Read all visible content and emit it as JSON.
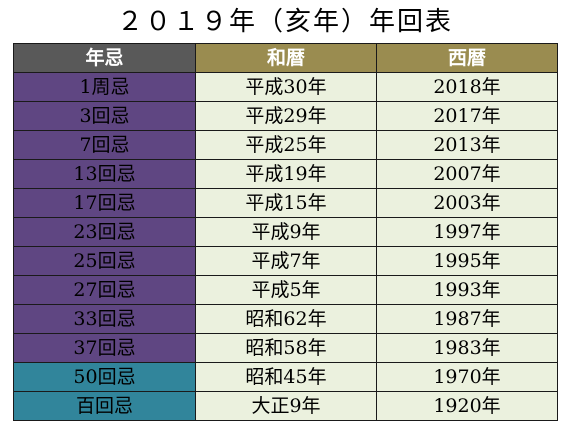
{
  "title": "２０１９年（亥年）年回表",
  "colors": {
    "header_nenki_bg": "#595959",
    "header_era_bg": "#9a8c50",
    "kaiki_purple": "#5f4682",
    "kaiki_teal": "#31859b",
    "value_bg": "#ebf1de",
    "border": "#1a1a1a"
  },
  "headers": {
    "nenki": "年忌",
    "wareki": "和暦",
    "seireki": "西暦"
  },
  "rows": [
    {
      "nenki": "1周忌",
      "wareki": "平成30年",
      "seireki": "2018年",
      "color": "#5f4682"
    },
    {
      "nenki": "3回忌",
      "wareki": "平成29年",
      "seireki": "2017年",
      "color": "#5f4682"
    },
    {
      "nenki": "7回忌",
      "wareki": "平成25年",
      "seireki": "2013年",
      "color": "#5f4682"
    },
    {
      "nenki": "13回忌",
      "wareki": "平成19年",
      "seireki": "2007年",
      "color": "#5f4682"
    },
    {
      "nenki": "17回忌",
      "wareki": "平成15年",
      "seireki": "2003年",
      "color": "#5f4682"
    },
    {
      "nenki": "23回忌",
      "wareki": "平成9年",
      "seireki": "1997年",
      "color": "#5f4682"
    },
    {
      "nenki": "25回忌",
      "wareki": "平成7年",
      "seireki": "1995年",
      "color": "#5f4682"
    },
    {
      "nenki": "27回忌",
      "wareki": "平成5年",
      "seireki": "1993年",
      "color": "#5f4682"
    },
    {
      "nenki": "33回忌",
      "wareki": "昭和62年",
      "seireki": "1987年",
      "color": "#5f4682"
    },
    {
      "nenki": "37回忌",
      "wareki": "昭和58年",
      "seireki": "1983年",
      "color": "#5f4682"
    },
    {
      "nenki": "50回忌",
      "wareki": "昭和45年",
      "seireki": "1970年",
      "color": "#31859b"
    },
    {
      "nenki": "百回忌",
      "wareki": "大正9年",
      "seireki": "1920年",
      "color": "#31859b"
    }
  ]
}
